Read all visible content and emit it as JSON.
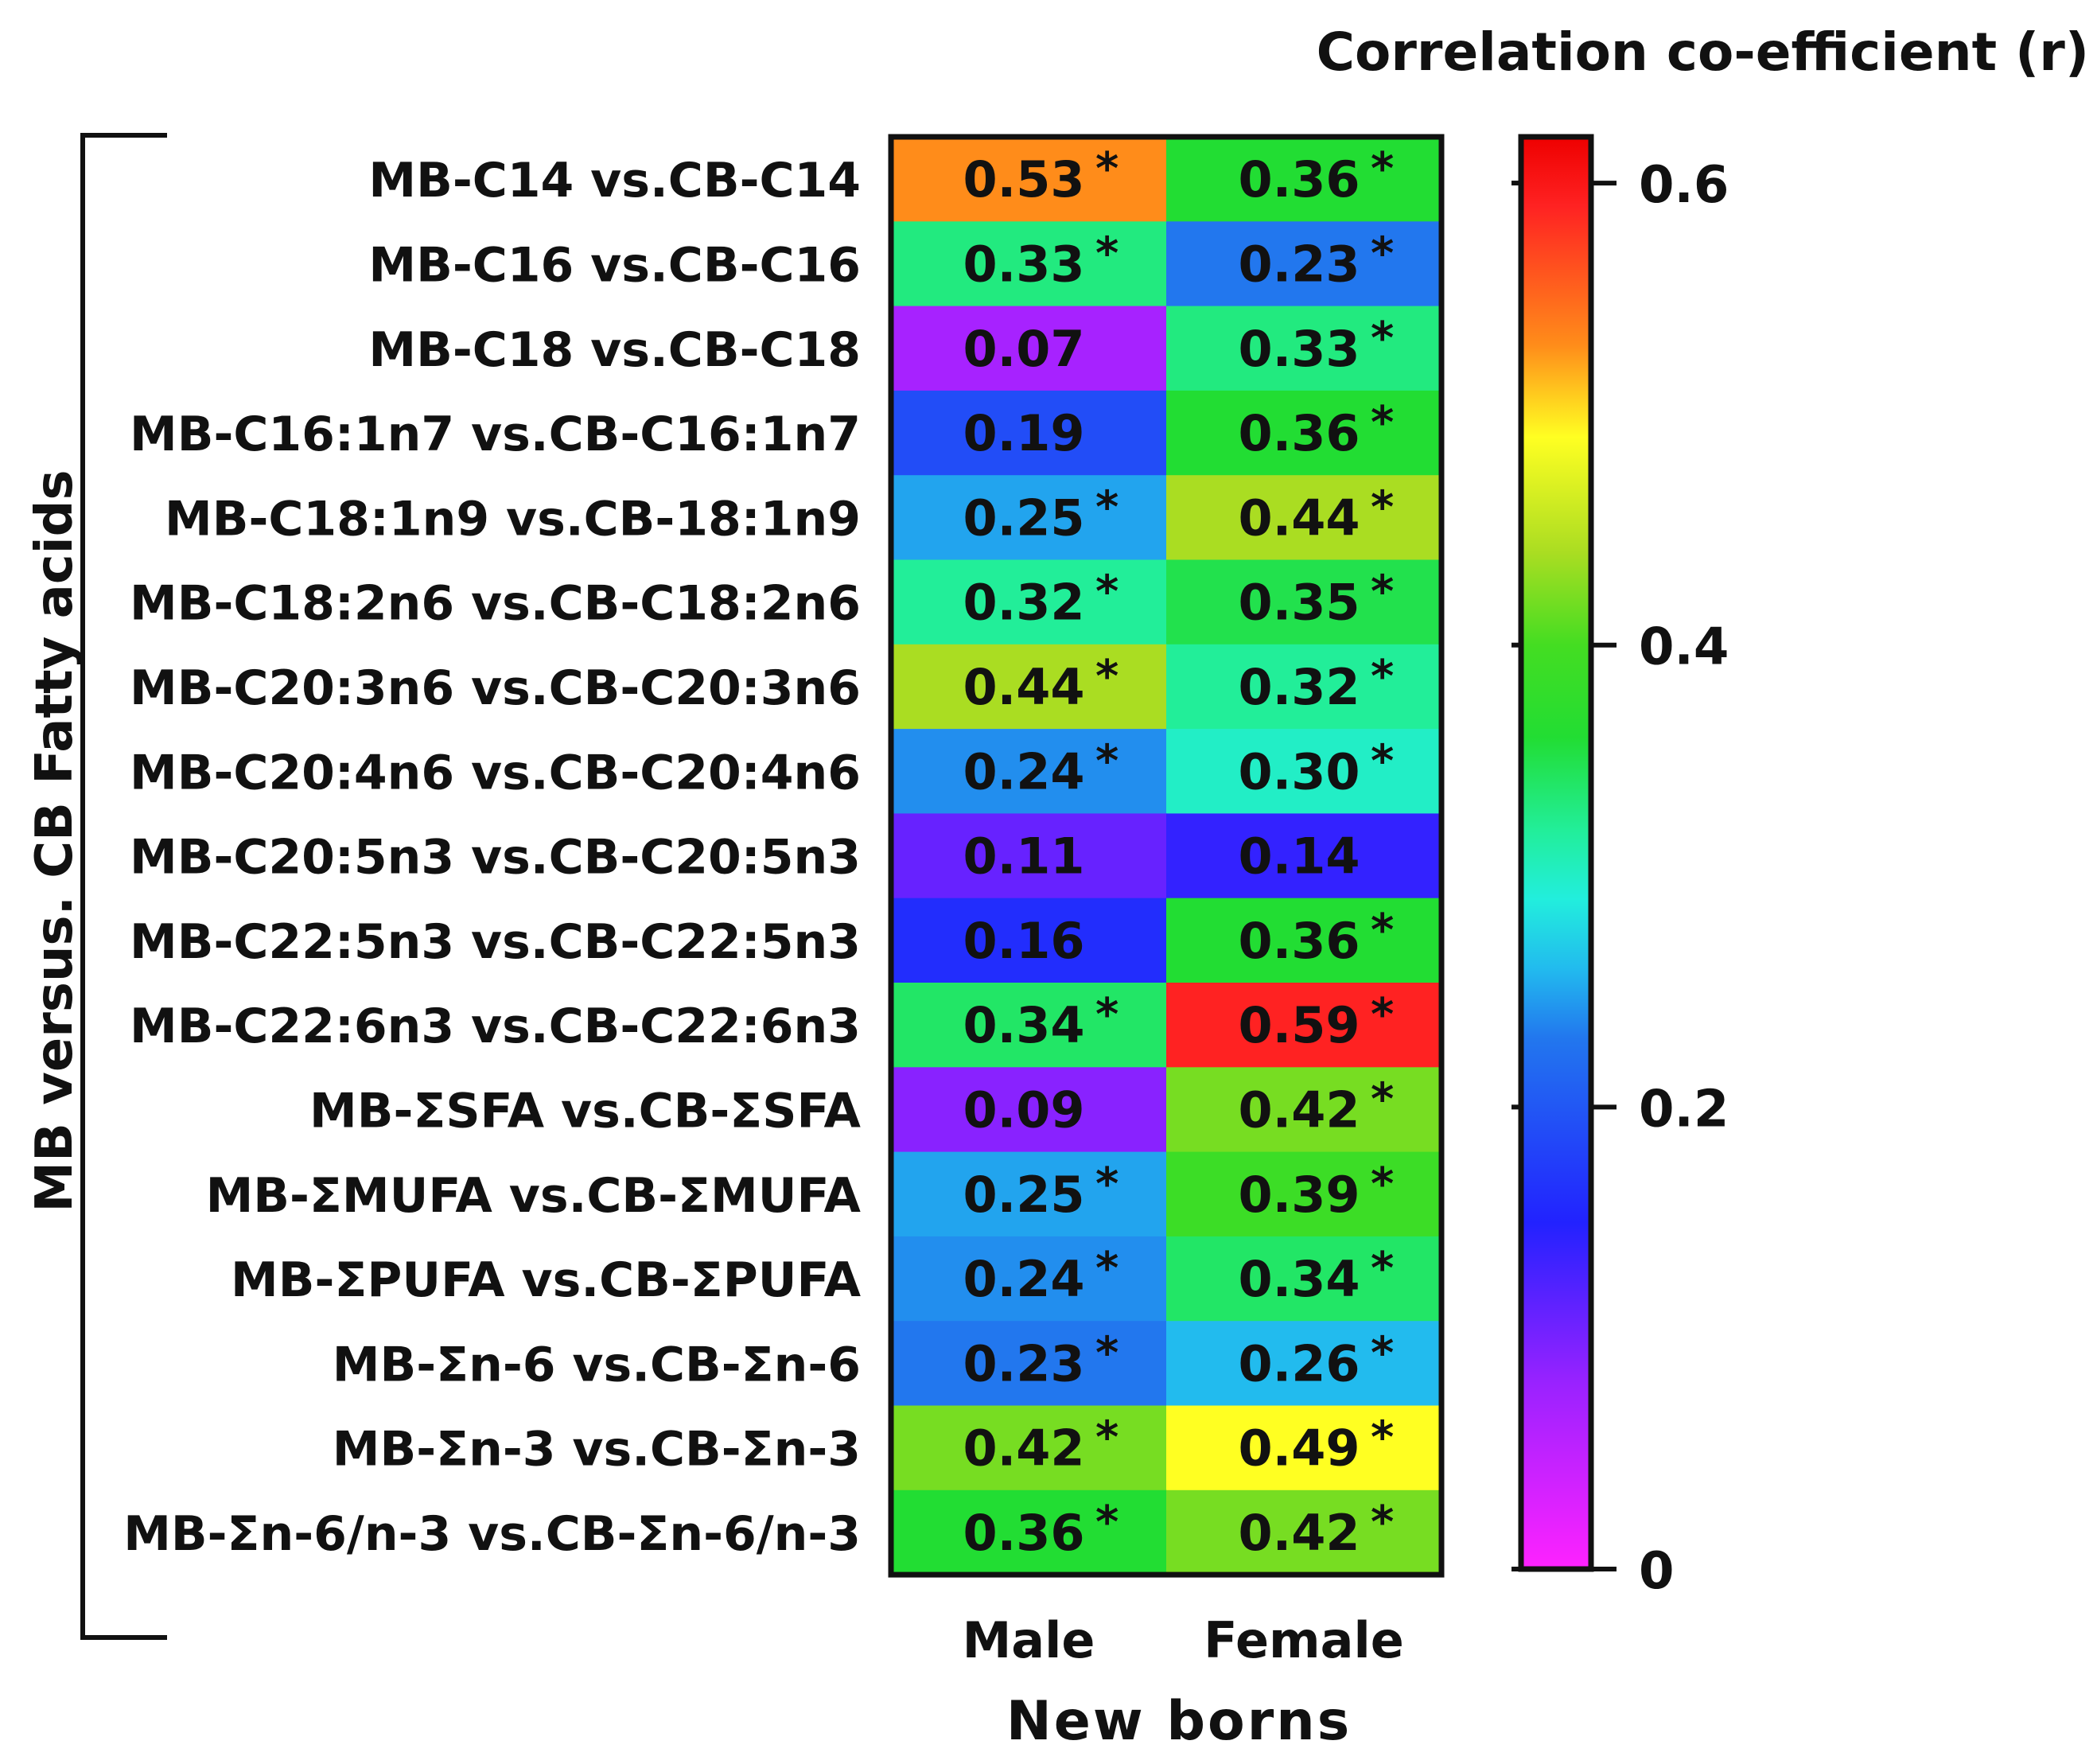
{
  "chart_data": {
    "type": "heatmap",
    "title": "",
    "colorbar_title": "Correlation co-efficient (r)",
    "xlabel": "New borns",
    "ylabel": "MB versus. CB Fatty acids",
    "columns": [
      "Male",
      "Female"
    ],
    "rows": [
      "MB-C14 vs.CB-C14",
      "MB-C16 vs.CB-C16",
      "MB-C18 vs.CB-C18",
      "MB-C16:1n7 vs.CB-C16:1n7",
      "MB-C18:1n9 vs.CB-18:1n9",
      "MB-C18:2n6 vs.CB-C18:2n6",
      "MB-C20:3n6 vs.CB-C20:3n6",
      "MB-C20:4n6 vs.CB-C20:4n6",
      "MB-C20:5n3 vs.CB-C20:5n3",
      "MB-C22:5n3 vs.CB-C22:5n3",
      "MB-C22:6n3 vs.CB-C22:6n3",
      "MB-ΣSFA vs.CB-ΣSFA",
      "MB-ΣMUFA vs.CB-ΣMUFA",
      "MB-ΣPUFA vs.CB-ΣPUFA",
      "MB-Σn-6 vs.CB-Σn-6",
      "MB-Σn-3 vs.CB-Σn-3",
      "MB-Σn-6/n-3 vs.CB-Σn-6/n-3"
    ],
    "values": [
      [
        0.53,
        0.36
      ],
      [
        0.33,
        0.23
      ],
      [
        0.07,
        0.33
      ],
      [
        0.19,
        0.36
      ],
      [
        0.25,
        0.44
      ],
      [
        0.32,
        0.35
      ],
      [
        0.44,
        0.32
      ],
      [
        0.24,
        0.3
      ],
      [
        0.11,
        0.14
      ],
      [
        0.16,
        0.36
      ],
      [
        0.34,
        0.59
      ],
      [
        0.09,
        0.42
      ],
      [
        0.25,
        0.39
      ],
      [
        0.24,
        0.34
      ],
      [
        0.23,
        0.26
      ],
      [
        0.42,
        0.49
      ],
      [
        0.36,
        0.42
      ]
    ],
    "labels": [
      [
        "0.53",
        "0.36"
      ],
      [
        "0.33",
        "0.23"
      ],
      [
        "0.07",
        "0.33"
      ],
      [
        "0.19",
        "0.36"
      ],
      [
        "0.25",
        "0.44"
      ],
      [
        "0.32",
        "0.35"
      ],
      [
        "0.44",
        "0.32"
      ],
      [
        "0.24",
        "0.30"
      ],
      [
        "0.11",
        "0.14"
      ],
      [
        "0.16",
        "0.36"
      ],
      [
        "0.34",
        "0.59"
      ],
      [
        "0.09",
        "0.42"
      ],
      [
        "0.25",
        "0.39"
      ],
      [
        "0.24",
        "0.34"
      ],
      [
        "0.23",
        "0.26"
      ],
      [
        "0.42",
        "0.49"
      ],
      [
        "0.36",
        "0.42"
      ]
    ],
    "significant": [
      [
        true,
        true
      ],
      [
        true,
        true
      ],
      [
        false,
        true
      ],
      [
        false,
        true
      ],
      [
        true,
        true
      ],
      [
        true,
        true
      ],
      [
        true,
        true
      ],
      [
        true,
        true
      ],
      [
        false,
        false
      ],
      [
        false,
        true
      ],
      [
        true,
        true
      ],
      [
        false,
        true
      ],
      [
        true,
        true
      ],
      [
        true,
        true
      ],
      [
        true,
        true
      ],
      [
        true,
        true
      ],
      [
        true,
        true
      ]
    ],
    "significance_marker": "*",
    "colorbar": {
      "range": [
        0,
        0.62
      ],
      "ticks": [
        0,
        0.2,
        0.4,
        0.6
      ],
      "tick_labels": [
        "0",
        "0.2",
        "0.4",
        "0.6"
      ],
      "colormap": [
        {
          "value": 0.0,
          "color": "#ff22ff"
        },
        {
          "value": 0.08,
          "color": "#9a22ff"
        },
        {
          "value": 0.15,
          "color": "#2222ff"
        },
        {
          "value": 0.23,
          "color": "#2277ee"
        },
        {
          "value": 0.26,
          "color": "#22bbee"
        },
        {
          "value": 0.29,
          "color": "#22eedd"
        },
        {
          "value": 0.32,
          "color": "#22ee99"
        },
        {
          "value": 0.36,
          "color": "#22dd33"
        },
        {
          "value": 0.4,
          "color": "#44dd22"
        },
        {
          "value": 0.44,
          "color": "#aadd22"
        },
        {
          "value": 0.49,
          "color": "#ffff22"
        },
        {
          "value": 0.53,
          "color": "#ff8c1a"
        },
        {
          "value": 0.59,
          "color": "#ff2222"
        },
        {
          "value": 0.62,
          "color": "#ee0000"
        }
      ]
    }
  }
}
